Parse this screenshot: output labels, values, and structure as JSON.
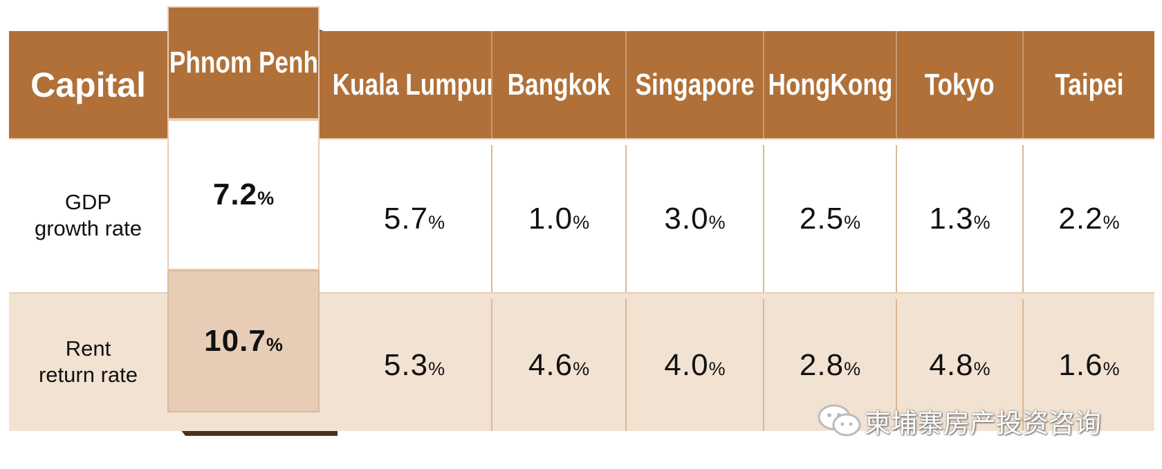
{
  "header": {
    "corner": "Capital",
    "columns": [
      "Phnom Penh",
      "Kuala Lumpur",
      "Bangkok",
      "Singapore",
      "HongKong",
      "Tokyo",
      "Taipei"
    ]
  },
  "rows": [
    {
      "label": [
        "GDP",
        "growth rate"
      ],
      "cells": [
        {
          "value": "7.2",
          "unit": "%"
        },
        {
          "value": "5.7",
          "unit": "%"
        },
        {
          "value": "1.0",
          "unit": "%"
        },
        {
          "value": "3.0",
          "unit": "%"
        },
        {
          "value": "2.5",
          "unit": "%"
        },
        {
          "value": "1.3",
          "unit": "%"
        },
        {
          "value": "2.2",
          "unit": "%"
        }
      ]
    },
    {
      "label": [
        "Rent",
        "return rate"
      ],
      "cells": [
        {
          "value": "10.7",
          "unit": "%"
        },
        {
          "value": "5.3",
          "unit": "%"
        },
        {
          "value": "4.6",
          "unit": "%"
        },
        {
          "value": "4.0",
          "unit": "%"
        },
        {
          "value": "2.8",
          "unit": "%"
        },
        {
          "value": "4.8",
          "unit": "%"
        },
        {
          "value": "1.6",
          "unit": "%"
        }
      ]
    }
  ],
  "watermark": "柬埔寨房产投资咨询"
}
